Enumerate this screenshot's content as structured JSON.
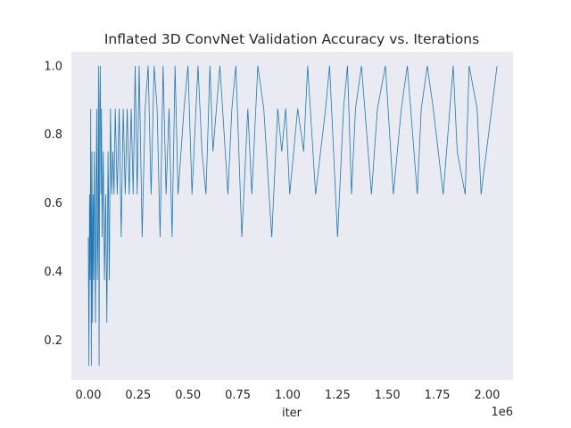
{
  "chart_data": {
    "type": "line",
    "title": "Inflated 3D ConvNet Validation Accuracy vs. Iterations",
    "xlabel": "iter",
    "ylabel": "",
    "x_offset_label": "1e6",
    "xlim": [
      -85000,
      2130000
    ],
    "ylim": [
      0.084,
      1.041
    ],
    "x_ticks": [
      0,
      250000,
      500000,
      750000,
      1000000,
      1250000,
      1500000,
      1750000,
      2000000
    ],
    "x_tick_labels": [
      "0.00",
      "0.25",
      "0.50",
      "0.75",
      "1.00",
      "1.25",
      "1.50",
      "1.75",
      "2.00"
    ],
    "y_ticks": [
      0.2,
      0.4,
      0.6,
      0.8,
      1.0
    ],
    "y_tick_labels": [
      "0.2",
      "0.4",
      "0.6",
      "0.8",
      "1.0"
    ],
    "background": "#eaeaf2",
    "grid": false,
    "series": [
      {
        "color": "#1f77b4",
        "x": [
          0,
          3000,
          6000,
          9000,
          12000,
          15000,
          18000,
          21000,
          24000,
          27000,
          30000,
          33000,
          36000,
          39000,
          42000,
          45000,
          48000,
          51000,
          54000,
          57000,
          60000,
          63000,
          66000,
          69000,
          75000,
          81000,
          87000,
          93000,
          99000,
          105000,
          111000,
          117000,
          123000,
          129000,
          135000,
          145000,
          155000,
          165000,
          175000,
          185000,
          195000,
          205000,
          215000,
          225000,
          235000,
          245000,
          255000,
          270000,
          285000,
          300000,
          315000,
          330000,
          345000,
          360000,
          375000,
          390000,
          405000,
          420000,
          435000,
          450000,
          480000,
          500000,
          520000,
          550000,
          570000,
          590000,
          610000,
          625000,
          660000,
          700000,
          720000,
          740000,
          770000,
          800000,
          820000,
          850000,
          880000,
          920000,
          950000,
          970000,
          990000,
          1010000,
          1050000,
          1080000,
          1100000,
          1140000,
          1190000,
          1210000,
          1250000,
          1280000,
          1300000,
          1320000,
          1340000,
          1370000,
          1420000,
          1450000,
          1490000,
          1530000,
          1570000,
          1600000,
          1650000,
          1670000,
          1700000,
          1730000,
          1780000,
          1830000,
          1850000,
          1890000,
          1910000,
          1950000,
          1970000,
          2050000
        ],
        "values": [
          0.5,
          0.125,
          0.625,
          0.375,
          0.875,
          0.125,
          0.75,
          0.25,
          0.625,
          0.375,
          0.75,
          0.5,
          0.25,
          0.625,
          0.875,
          0.375,
          0.5,
          1.0,
          0.125,
          0.875,
          1.0,
          0.625,
          0.875,
          0.5,
          0.75,
          0.375,
          0.625,
          0.25,
          0.75,
          0.375,
          0.875,
          0.625,
          0.75,
          0.625,
          0.875,
          0.625,
          0.875,
          0.5,
          0.875,
          0.625,
          0.875,
          0.625,
          0.875,
          0.625,
          1.0,
          0.625,
          1.0,
          0.5,
          0.875,
          1.0,
          0.625,
          1.0,
          0.875,
          0.5,
          1.0,
          0.625,
          0.875,
          0.5,
          1.0,
          0.625,
          0.875,
          1.0,
          0.625,
          1.0,
          0.75,
          0.625,
          1.0,
          0.75,
          1.0,
          0.625,
          0.875,
          1.0,
          0.5,
          0.875,
          0.625,
          1.0,
          0.875,
          0.5,
          0.875,
          0.75,
          0.875,
          0.625,
          0.875,
          0.75,
          1.0,
          0.625,
          0.875,
          1.0,
          0.5,
          0.875,
          1.0,
          0.625,
          0.875,
          1.0,
          0.625,
          0.875,
          1.0,
          0.625,
          0.875,
          1.0,
          0.625,
          0.875,
          1.0,
          0.875,
          0.625,
          1.0,
          0.75,
          0.625,
          1.0,
          0.875,
          0.625,
          1.0
        ]
      }
    ]
  }
}
